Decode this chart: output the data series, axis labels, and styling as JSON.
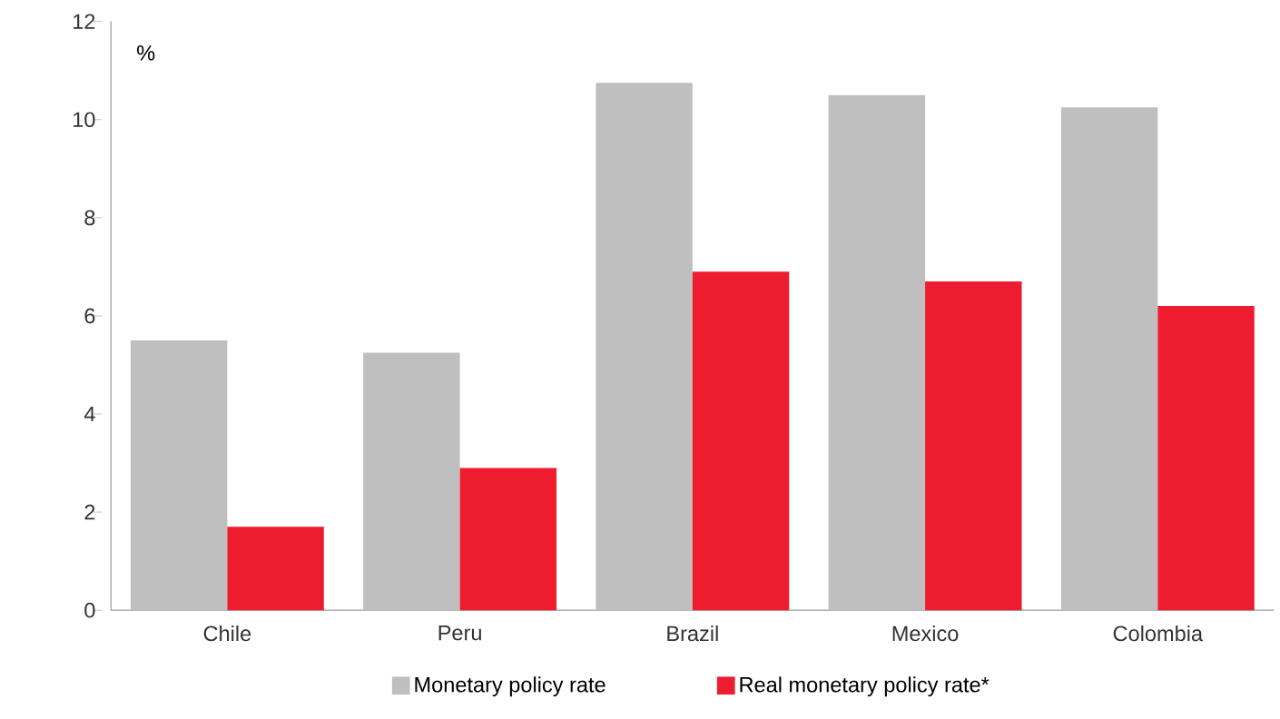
{
  "chart_data": {
    "type": "bar",
    "ylabel": "%",
    "categories": [
      "Chile",
      "Peru",
      "Brazil",
      "Mexico",
      "Colombia"
    ],
    "series": [
      {
        "name": "Monetary policy rate",
        "color": "#bfbfbf",
        "values": [
          5.5,
          5.25,
          10.75,
          10.5,
          10.25
        ]
      },
      {
        "name": "Real monetary policy rate*",
        "color": "#ed1c2e",
        "values": [
          1.7,
          2.9,
          6.9,
          6.7,
          6.2
        ]
      }
    ],
    "ylim": [
      0,
      12
    ],
    "yticks": [
      0,
      2,
      4,
      6,
      8,
      10,
      12
    ],
    "legend": "bottom"
  }
}
